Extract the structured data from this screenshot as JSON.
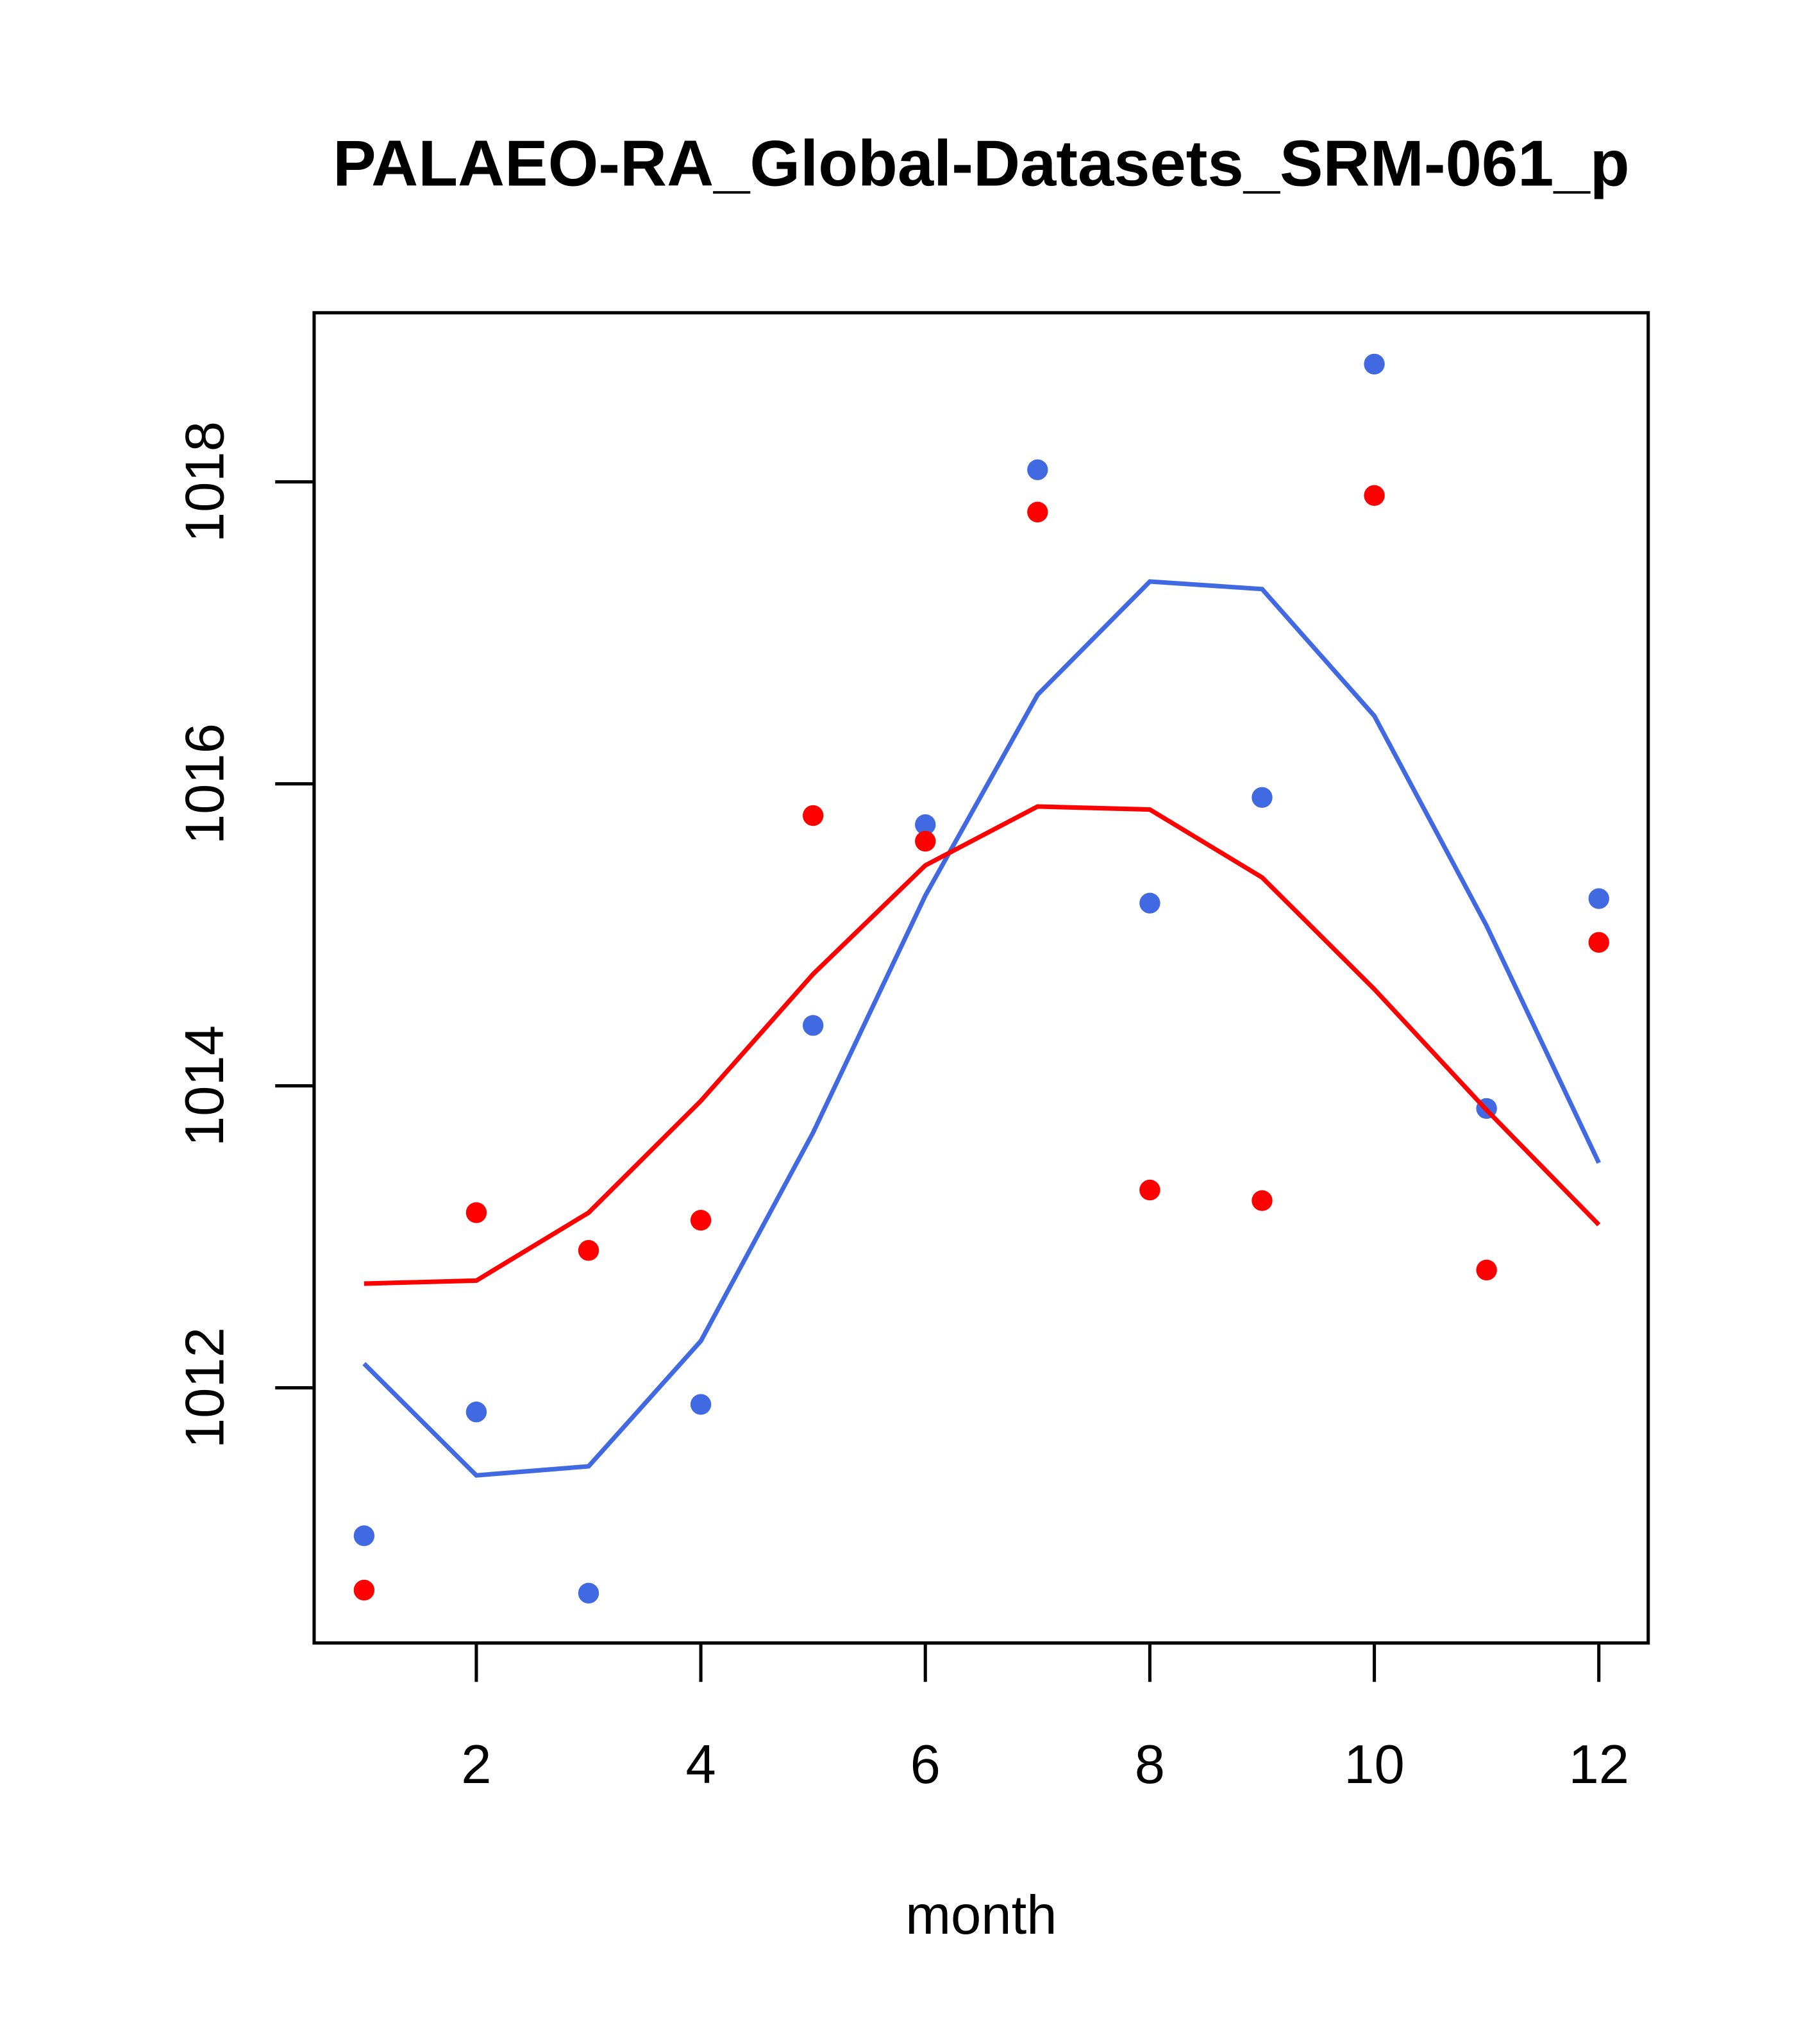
{
  "chart_data": {
    "type": "scatter+line",
    "title": "PALAEO-RA_Global-Datasets_SRM-061_p",
    "xlabel": "month",
    "ylabel": "",
    "xlim": [
      0.555,
      12.44
    ],
    "ylim": [
      1010.31,
      1019.12
    ],
    "xticks": [
      2,
      4,
      6,
      8,
      10,
      12
    ],
    "yticks": [
      1012,
      1014,
      1016,
      1018
    ],
    "x": [
      1,
      2,
      3,
      4,
      5,
      6,
      7,
      8,
      9,
      10,
      11,
      12
    ],
    "series": [
      {
        "name": "blue points",
        "kind": "points",
        "color": "#4169E1",
        "values": [
          1011.02,
          1011.84,
          1010.64,
          1011.89,
          1014.4,
          1015.73,
          1018.08,
          1015.21,
          1015.91,
          1018.78,
          1013.85,
          1015.24
        ]
      },
      {
        "name": "red points",
        "kind": "points",
        "color": "#FF0000",
        "values": [
          1010.66,
          1013.16,
          1012.91,
          1013.11,
          1015.79,
          1015.62,
          1017.8,
          1013.31,
          1013.24,
          1017.91,
          1012.78,
          1014.95
        ]
      },
      {
        "name": "blue line",
        "kind": "line",
        "color": "#4169E1",
        "values": [
          1012.16,
          1011.42,
          1011.48,
          1012.31,
          1013.69,
          1015.26,
          1016.59,
          1017.34,
          1017.29,
          1016.45,
          1015.06,
          1013.49
        ]
      },
      {
        "name": "red line",
        "kind": "line",
        "color": "#FF0000",
        "values": [
          1012.69,
          1012.71,
          1013.16,
          1013.9,
          1014.74,
          1015.46,
          1015.85,
          1015.83,
          1015.38,
          1014.64,
          1013.84,
          1013.08
        ]
      }
    ]
  }
}
